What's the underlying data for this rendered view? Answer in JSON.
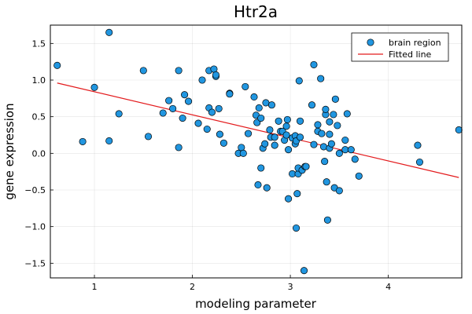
{
  "chart_data": {
    "type": "scatter",
    "title": "Htr2a",
    "xlabel": "modeling parameter",
    "ylabel": "gene expression",
    "xlim": [
      0.55,
      4.75
    ],
    "ylim": [
      -1.7,
      1.75
    ],
    "xticks": [
      1,
      2,
      3,
      4
    ],
    "yticks": [
      -1.5,
      -1.0,
      -0.5,
      0.0,
      0.5,
      1.0,
      1.5
    ],
    "xtick_labels": [
      "1",
      "2",
      "3",
      "4"
    ],
    "ytick_labels": [
      "−1.5",
      "−1.0",
      "−0.5",
      "0.0",
      "0.5",
      "1.0",
      "1.5"
    ],
    "grid": true,
    "legend": "top-right",
    "series": [
      {
        "name": "brain region",
        "kind": "scatter",
        "color": "#2196e0",
        "points": [
          [
            0.62,
            1.2
          ],
          [
            0.88,
            0.16
          ],
          [
            1.0,
            0.9
          ],
          [
            1.15,
            1.65
          ],
          [
            1.15,
            0.17
          ],
          [
            1.25,
            0.54
          ],
          [
            1.5,
            1.13
          ],
          [
            1.55,
            0.23
          ],
          [
            1.7,
            0.55
          ],
          [
            1.76,
            0.72
          ],
          [
            1.8,
            0.61
          ],
          [
            1.86,
            1.13
          ],
          [
            1.86,
            0.08
          ],
          [
            1.9,
            0.48
          ],
          [
            1.92,
            0.8
          ],
          [
            1.96,
            0.71
          ],
          [
            2.06,
            0.41
          ],
          [
            2.1,
            1.0
          ],
          [
            2.15,
            0.33
          ],
          [
            2.17,
            0.62
          ],
          [
            2.17,
            1.13
          ],
          [
            2.2,
            0.56
          ],
          [
            2.22,
            1.15
          ],
          [
            2.24,
            1.05
          ],
          [
            2.24,
            1.07
          ],
          [
            2.27,
            0.61
          ],
          [
            2.28,
            0.26
          ],
          [
            2.32,
            0.14
          ],
          [
            2.38,
            0.82
          ],
          [
            2.38,
            0.81
          ],
          [
            2.47,
            0.0
          ],
          [
            2.5,
            0.08
          ],
          [
            2.52,
            0.0
          ],
          [
            2.54,
            0.91
          ],
          [
            2.57,
            0.27
          ],
          [
            2.63,
            0.77
          ],
          [
            2.65,
            0.52
          ],
          [
            2.66,
            0.42
          ],
          [
            2.67,
            -0.43
          ],
          [
            2.68,
            0.62
          ],
          [
            2.7,
            -0.2
          ],
          [
            2.7,
            0.48
          ],
          [
            2.72,
            0.07
          ],
          [
            2.74,
            0.13
          ],
          [
            2.75,
            0.69
          ],
          [
            2.76,
            -0.47
          ],
          [
            2.79,
            0.32
          ],
          [
            2.8,
            0.22
          ],
          [
            2.81,
            0.66
          ],
          [
            2.84,
            0.22
          ],
          [
            2.84,
            0.11
          ],
          [
            2.88,
            0.44
          ],
          [
            2.9,
            0.3
          ],
          [
            2.92,
            0.3
          ],
          [
            2.94,
            0.18
          ],
          [
            2.96,
            0.25
          ],
          [
            2.96,
            0.37
          ],
          [
            2.97,
            0.46
          ],
          [
            2.98,
            0.05
          ],
          [
            2.98,
            -0.62
          ],
          [
            3.02,
            0.21
          ],
          [
            3.02,
            -0.28
          ],
          [
            3.05,
            0.13
          ],
          [
            3.05,
            0.24
          ],
          [
            3.06,
            0.17
          ],
          [
            3.06,
            -1.02
          ],
          [
            3.07,
            -0.55
          ],
          [
            3.08,
            -0.28
          ],
          [
            3.08,
            -0.2
          ],
          [
            3.09,
            0.99
          ],
          [
            3.1,
            0.44
          ],
          [
            3.1,
            0.22
          ],
          [
            3.12,
            -0.23
          ],
          [
            3.14,
            -1.6
          ],
          [
            3.15,
            -0.18
          ],
          [
            3.16,
            -0.18
          ],
          [
            3.22,
            0.66
          ],
          [
            3.24,
            1.21
          ],
          [
            3.24,
            0.12
          ],
          [
            3.28,
            0.39
          ],
          [
            3.28,
            0.3
          ],
          [
            3.31,
            1.02
          ],
          [
            3.32,
            0.27
          ],
          [
            3.34,
            0.09
          ],
          [
            3.35,
            -0.11
          ],
          [
            3.36,
            0.53
          ],
          [
            3.36,
            0.6
          ],
          [
            3.37,
            -0.39
          ],
          [
            3.38,
            -0.91
          ],
          [
            3.4,
            0.07
          ],
          [
            3.4,
            0.26
          ],
          [
            3.4,
            0.43
          ],
          [
            3.42,
            0.13
          ],
          [
            3.44,
            0.53
          ],
          [
            3.45,
            -0.47
          ],
          [
            3.46,
            0.74
          ],
          [
            3.48,
            0.38
          ],
          [
            3.5,
            0.0
          ],
          [
            3.5,
            -0.51
          ],
          [
            3.56,
            0.18
          ],
          [
            3.56,
            0.05
          ],
          [
            3.58,
            0.54
          ],
          [
            3.62,
            0.05
          ],
          [
            3.66,
            -0.08
          ],
          [
            3.7,
            -0.31
          ],
          [
            4.3,
            0.11
          ],
          [
            4.32,
            -0.12
          ],
          [
            4.72,
            0.32
          ]
        ]
      },
      {
        "name": "Fitted line",
        "kind": "line",
        "color": "#e31a1c",
        "x": [
          0.62,
          4.72
        ],
        "y": [
          0.96,
          -0.33
        ]
      }
    ]
  }
}
